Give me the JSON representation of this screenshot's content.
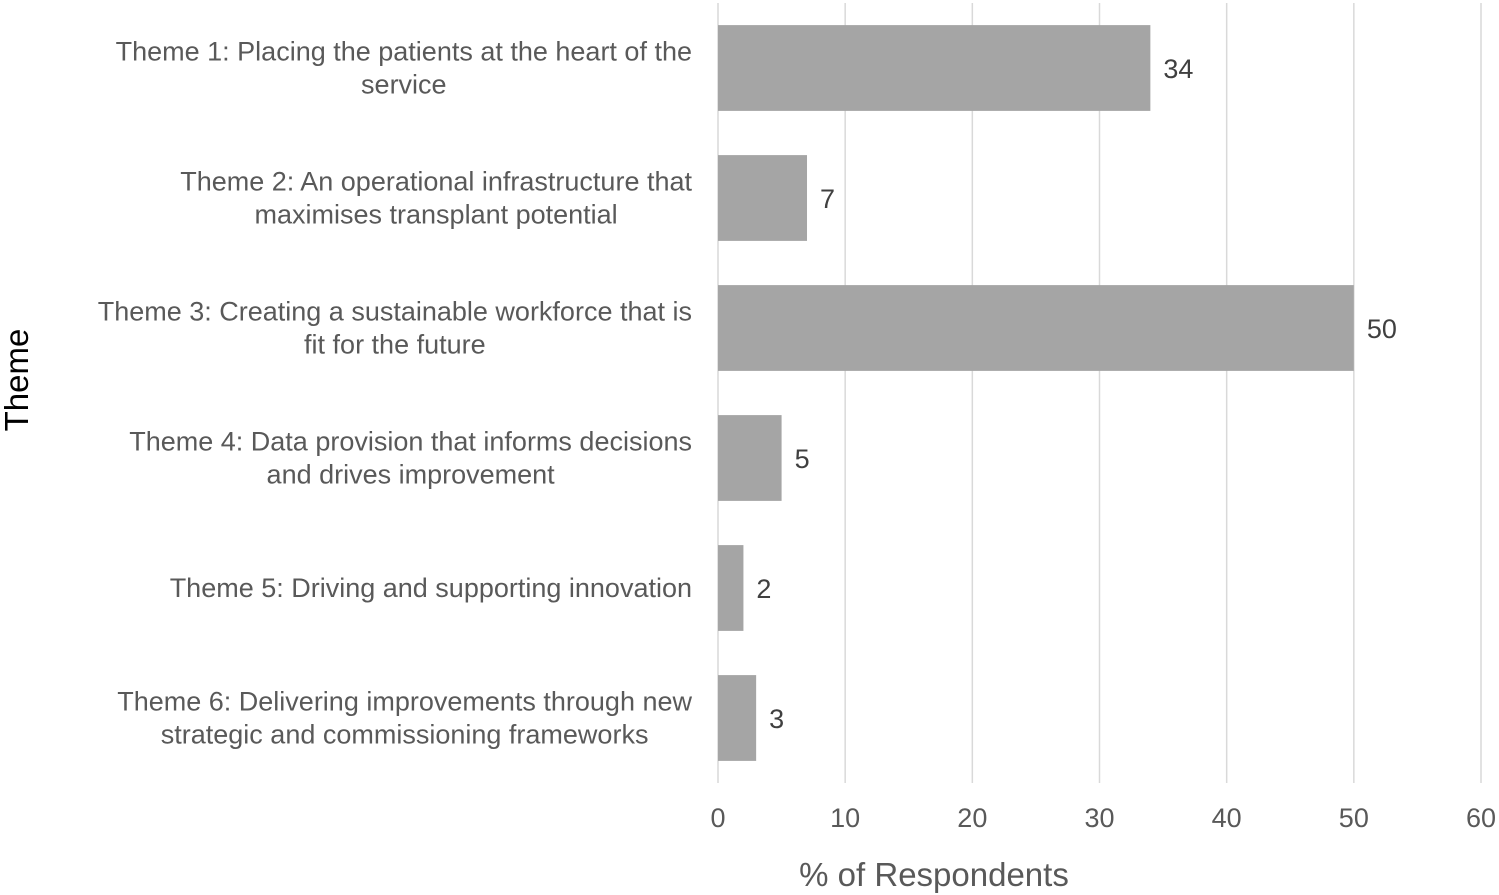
{
  "chart_data": {
    "type": "bar",
    "orientation": "horizontal",
    "categories": [
      [
        "Theme 1: Placing the patients at the heart of the",
        "service"
      ],
      [
        "Theme 2: An operational infrastructure that",
        "maximises transplant potential"
      ],
      [
        "Theme 3: Creating a sustainable workforce that is",
        "fit for the future"
      ],
      [
        "Theme 4: Data provision that informs decisions",
        "and drives improvement"
      ],
      [
        "Theme 5: Driving and supporting innovation"
      ],
      [
        "Theme 6: Delivering improvements through new",
        "strategic and commissioning frameworks"
      ]
    ],
    "values": [
      34,
      7,
      50,
      5,
      2,
      3
    ],
    "data_labels": [
      "34",
      "7",
      "50",
      "5",
      "2",
      "3"
    ],
    "xlabel": "% of Respondents",
    "ylabel": "Theme",
    "xlim": [
      0,
      60
    ],
    "x_ticks": [
      "0",
      "10",
      "20",
      "30",
      "40",
      "50",
      "60"
    ],
    "grid": "vertical",
    "legend": "none",
    "bar_color": "#a5a5a5",
    "grid_color": "#d9d9d9",
    "text_color": "#595959"
  }
}
